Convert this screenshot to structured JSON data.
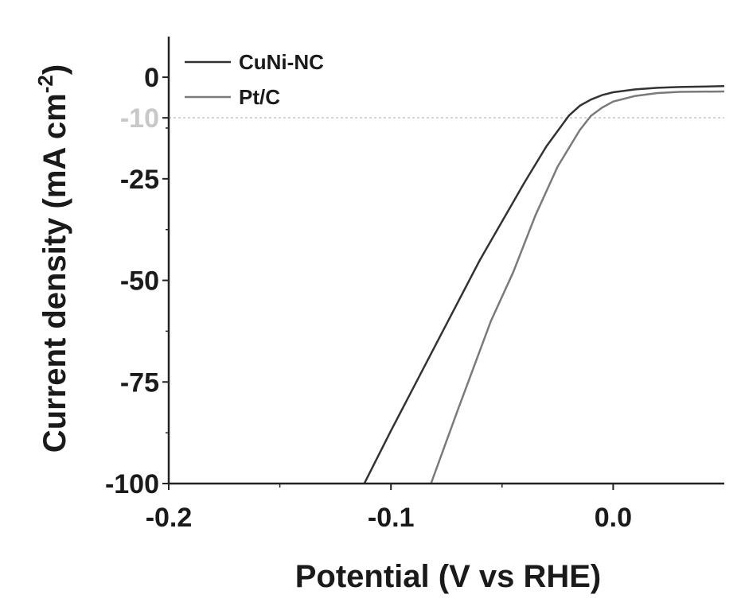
{
  "chart_data": {
    "type": "line",
    "title": "",
    "xlabel": "Potential (V vs RHE)",
    "ylabel_main": "Current density (mA cm",
    "ylabel_sup": "-2",
    "ylabel_close": ")",
    "xlim": [
      -0.2,
      0.05
    ],
    "ylim": [
      -100,
      10
    ],
    "xticks": [
      {
        "value": -0.2,
        "label": "-0.2"
      },
      {
        "value": -0.1,
        "label": "-0.1"
      },
      {
        "value": 0.0,
        "label": "0.0"
      }
    ],
    "yticks": [
      {
        "value": 0,
        "label": "0"
      },
      {
        "value": -10,
        "label": "-10"
      },
      {
        "value": -25,
        "label": "-25"
      },
      {
        "value": -50,
        "label": "-50"
      },
      {
        "value": -75,
        "label": "-75"
      },
      {
        "value": -100,
        "label": "-100"
      }
    ],
    "reference_line": {
      "y": -10,
      "color": "#c8c8c8",
      "label": "-10"
    },
    "legend_position": "top-left",
    "grid": false,
    "series": [
      {
        "name": "CuNi-NC",
        "color": "#333333",
        "points": [
          [
            -0.112,
            -100
          ],
          [
            -0.1,
            -87
          ],
          [
            -0.08,
            -66
          ],
          [
            -0.06,
            -45
          ],
          [
            -0.04,
            -26
          ],
          [
            -0.03,
            -17
          ],
          [
            -0.02,
            -9.5
          ],
          [
            -0.015,
            -7
          ],
          [
            -0.01,
            -5.5
          ],
          [
            -0.005,
            -4.4
          ],
          [
            0.0,
            -3.7
          ],
          [
            0.01,
            -3.0
          ],
          [
            0.02,
            -2.6
          ],
          [
            0.03,
            -2.4
          ],
          [
            0.05,
            -2.2
          ]
        ]
      },
      {
        "name": "Pt/C",
        "color": "#7a7a7a",
        "points": [
          [
            -0.082,
            -100
          ],
          [
            -0.07,
            -82
          ],
          [
            -0.055,
            -60
          ],
          [
            -0.045,
            -48
          ],
          [
            -0.035,
            -34
          ],
          [
            -0.025,
            -22
          ],
          [
            -0.015,
            -13
          ],
          [
            -0.01,
            -9.5
          ],
          [
            -0.005,
            -7.5
          ],
          [
            0.0,
            -6
          ],
          [
            0.01,
            -4.6
          ],
          [
            0.02,
            -3.9
          ],
          [
            0.03,
            -3.6
          ],
          [
            0.05,
            -3.5
          ]
        ]
      }
    ]
  }
}
